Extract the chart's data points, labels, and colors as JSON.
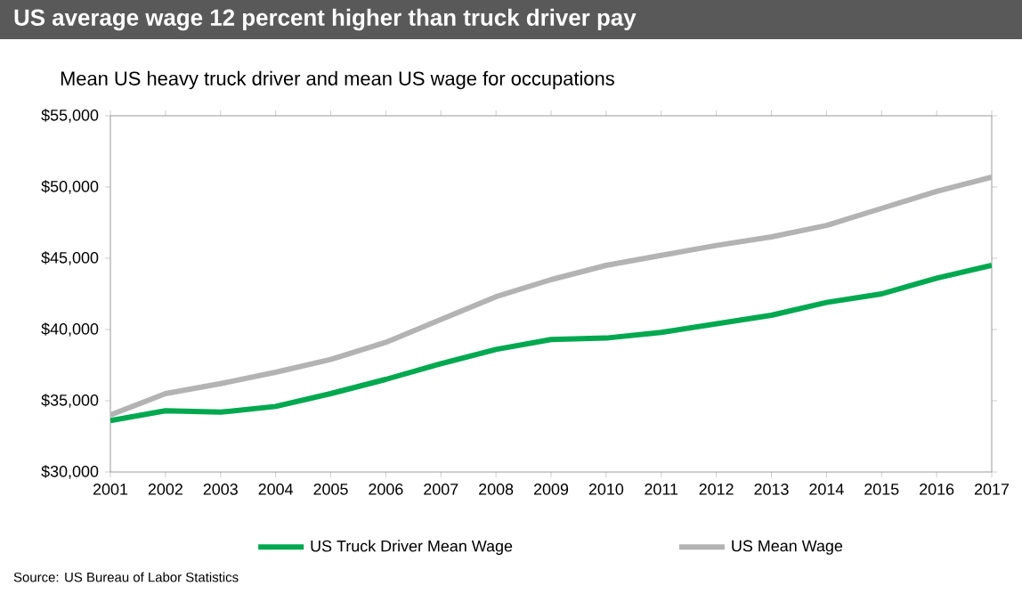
{
  "chart_data": {
    "type": "line",
    "title": "US average wage 12 percent higher than truck driver pay",
    "subtitle": "Mean US heavy truck driver and  mean US wage for occupations",
    "categories": [
      "2001",
      "2002",
      "2003",
      "2004",
      "2005",
      "2006",
      "2007",
      "2008",
      "2009",
      "2010",
      "2011",
      "2012",
      "2013",
      "2014",
      "2015",
      "2016",
      "2017"
    ],
    "series": [
      {
        "name": "US Truck Driver Mean Wage",
        "color": "#00a84f",
        "values": [
          33600,
          34300,
          34200,
          34600,
          35500,
          36500,
          37600,
          38600,
          39300,
          39400,
          39800,
          40400,
          41000,
          41900,
          42500,
          43600,
          44500
        ]
      },
      {
        "name": "US Mean Wage",
        "color": "#b3b3b3",
        "values": [
          34000,
          35500,
          36200,
          37000,
          37900,
          39100,
          40700,
          42300,
          43500,
          44500,
          45200,
          45900,
          46500,
          47300,
          48500,
          49700,
          50700
        ]
      }
    ],
    "ylim": [
      30000,
      55000
    ],
    "yticks": [
      {
        "value": 30000,
        "label": "$30,000"
      },
      {
        "value": 35000,
        "label": "$35,000"
      },
      {
        "value": 40000,
        "label": "$40,000"
      },
      {
        "value": 45000,
        "label": "$45,000"
      },
      {
        "value": 50000,
        "label": "$50,000"
      },
      {
        "value": 55000,
        "label": "$55,000"
      }
    ],
    "grid": false,
    "legend": "bottom",
    "marker": "none",
    "line_style": "solid",
    "annotations": [
      "Source: US Bureau of Labor Statistics"
    ]
  }
}
